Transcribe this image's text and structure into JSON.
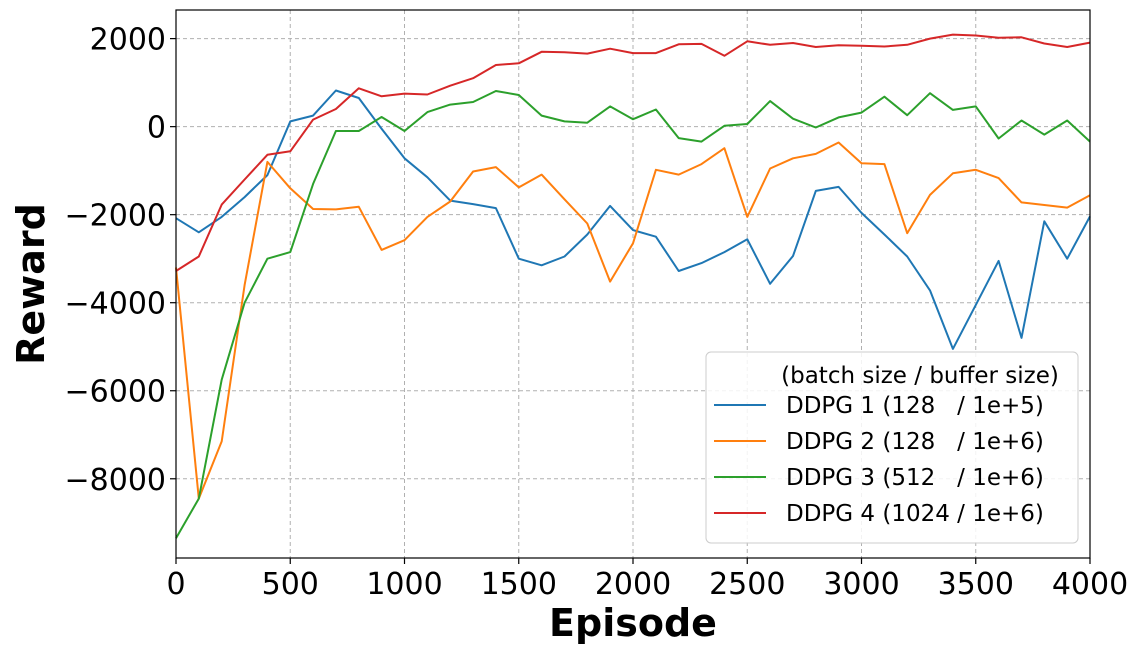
{
  "chart_data": {
    "type": "line",
    "title": "",
    "xlabel": "Episode",
    "ylabel": "Reward",
    "xlim": [
      0,
      4000
    ],
    "ylim": [
      -9800,
      2650
    ],
    "grid": true,
    "x_ticks": [
      0,
      500,
      1000,
      1500,
      2000,
      2500,
      3000,
      3500,
      4000
    ],
    "x_tick_labels": [
      "0",
      "500",
      "1000",
      "1500",
      "2000",
      "2500",
      "3000",
      "3500",
      "4000"
    ],
    "y_ticks": [
      -8000,
      -6000,
      -4000,
      -2000,
      0,
      2000
    ],
    "y_tick_labels": [
      "−8000",
      "−6000",
      "−4000",
      "−2000",
      "0",
      "2000"
    ],
    "legend": {
      "title": "(batch size / buffer size)",
      "position": "lower-right"
    },
    "x": [
      0,
      100,
      200,
      300,
      400,
      500,
      600,
      700,
      800,
      900,
      1000,
      1100,
      1200,
      1300,
      1400,
      1500,
      1600,
      1700,
      1800,
      1900,
      2000,
      2100,
      2200,
      2300,
      2400,
      2500,
      2600,
      2700,
      2800,
      2900,
      3000,
      3100,
      3200,
      3300,
      3400,
      3500,
      3600,
      3700,
      3800,
      3900,
      4000
    ],
    "series": [
      {
        "name": "DDPG 1 (128   / 1e+5)",
        "color": "#1f77b4",
        "values": [
          -2080,
          -2400,
          -2050,
          -1600,
          -1100,
          120,
          250,
          820,
          650,
          -50,
          -720,
          -1150,
          -1680,
          -1760,
          -1850,
          -3000,
          -3150,
          -2950,
          -2450,
          -1800,
          -2350,
          -2500,
          -3280,
          -3100,
          -2850,
          -2560,
          -3570,
          -2940,
          -1460,
          -1370,
          -1960,
          -2450,
          -2950,
          -3720,
          -5050,
          -4050,
          -3050,
          -4800,
          -2150,
          -3000,
          -2040
        ]
      },
      {
        "name": "DDPG 2 (128   / 1e+6)",
        "color": "#ff7f0e",
        "values": [
          -3200,
          -8450,
          -7150,
          -3600,
          -800,
          -1400,
          -1870,
          -1880,
          -1820,
          -2800,
          -2580,
          -2050,
          -1700,
          -1020,
          -920,
          -1380,
          -1090,
          -1650,
          -2200,
          -3520,
          -2650,
          -980,
          -1090,
          -850,
          -490,
          -2050,
          -950,
          -720,
          -620,
          -360,
          -830,
          -850,
          -2420,
          -1550,
          -1060,
          -980,
          -1170,
          -1720,
          -1780,
          -1840,
          -1560
        ]
      },
      {
        "name": "DDPG 3 (512   / 1e+6)",
        "color": "#2ca02c",
        "values": [
          -9350,
          -8450,
          -5750,
          -4000,
          -3000,
          -2850,
          -1300,
          -100,
          -100,
          220,
          -100,
          330,
          500,
          560,
          810,
          720,
          250,
          120,
          90,
          460,
          170,
          390,
          -260,
          -340,
          20,
          60,
          580,
          180,
          -20,
          210,
          320,
          680,
          260,
          760,
          380,
          460,
          -270,
          140,
          -180,
          140,
          -340
        ]
      },
      {
        "name": "DDPG 4 (1024 / 1e+6)",
        "color": "#d62728",
        "values": [
          -3280,
          -2950,
          -1770,
          -1200,
          -640,
          -560,
          160,
          400,
          870,
          690,
          750,
          730,
          930,
          1100,
          1400,
          1440,
          1700,
          1690,
          1660,
          1770,
          1670,
          1670,
          1870,
          1880,
          1610,
          1940,
          1860,
          1900,
          1810,
          1850,
          1840,
          1820,
          1860,
          2000,
          2090,
          2070,
          2020,
          2030,
          1890,
          1810,
          1910
        ]
      }
    ]
  }
}
